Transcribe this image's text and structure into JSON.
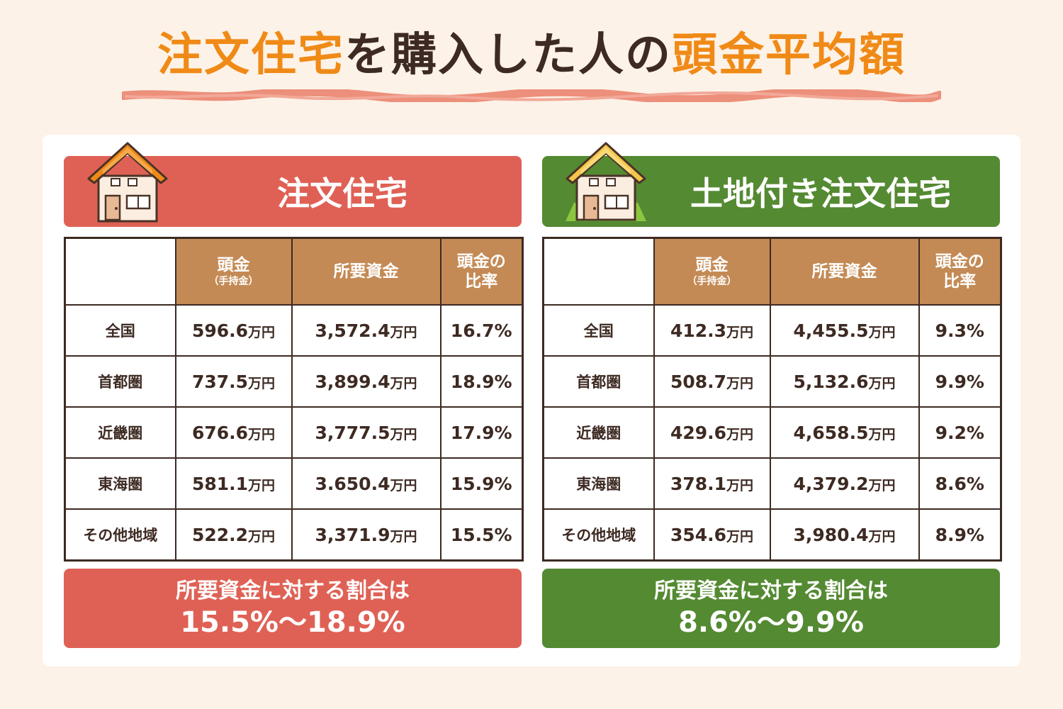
{
  "styles": {
    "body": "--bg:#fdf2e7",
    "red": "background:#df6155",
    "green": "background:#548a32"
  },
  "title": {
    "part1": "注文住宅",
    "part2": "を購入した人の",
    "part3": "頭金平均額"
  },
  "panels": [
    {
      "banner": "注文住宅",
      "headers": {
        "col1": "頭金",
        "col1_sub": "（手持金）",
        "col2": "所要資金",
        "col3_l1": "頭金の",
        "col3_l2": "比率"
      },
      "unit": "万円",
      "rows": [
        {
          "region": "全国",
          "down": "596.6",
          "required": "3,572.4",
          "ratio": "16.7%"
        },
        {
          "region": "首都圏",
          "down": "737.5",
          "required": "3,899.4",
          "ratio": "18.9%"
        },
        {
          "region": "近畿圏",
          "down": "676.6",
          "required": "3,777.5",
          "ratio": "17.9%"
        },
        {
          "region": "東海圏",
          "down": "581.1",
          "required": "3.650.4",
          "ratio": "15.9%"
        },
        {
          "region": "その他地域",
          "down": "522.2",
          "required": "3,371.9",
          "ratio": "15.5%"
        }
      ],
      "summary_l1": "所要資金に対する割合は",
      "summary_l2": "15.5%〜18.9%"
    },
    {
      "banner": "土地付き注文住宅",
      "headers": {
        "col1": "頭金",
        "col1_sub": "（手持金）",
        "col2": "所要資金",
        "col3_l1": "頭金の",
        "col3_l2": "比率"
      },
      "unit": "万円",
      "rows": [
        {
          "region": "全国",
          "down": "412.3",
          "required": "4,455.5",
          "ratio": "9.3%"
        },
        {
          "region": "首都圏",
          "down": "508.7",
          "required": "5,132.6",
          "ratio": "9.9%"
        },
        {
          "region": "近畿圏",
          "down": "429.6",
          "required": "4,658.5",
          "ratio": "9.2%"
        },
        {
          "region": "東海圏",
          "down": "378.1",
          "required": "4,379.2",
          "ratio": "8.6%"
        },
        {
          "region": "その他地域",
          "down": "354.6",
          "required": "3,980.4",
          "ratio": "8.9%"
        }
      ],
      "summary_l1": "所要資金に対する割合は",
      "summary_l2": "8.6%〜9.9%"
    }
  ]
}
